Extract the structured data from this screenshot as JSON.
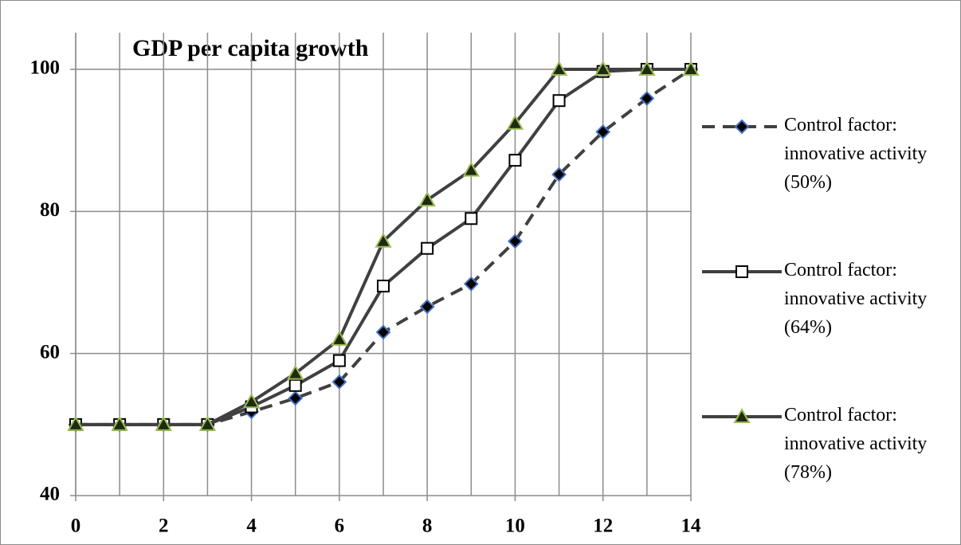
{
  "chart_data": {
    "type": "line",
    "title": "GDP per capita growth",
    "x": [
      0,
      1,
      2,
      3,
      4,
      5,
      6,
      7,
      8,
      9,
      10,
      11,
      12,
      13,
      14
    ],
    "series": [
      {
        "name": "Control factor: innovative activity (50%)",
        "color": "#404040",
        "dashed": true,
        "marker": "diamond",
        "marker_fill": "#000000",
        "marker_stroke": "#4472c4",
        "values": [
          50,
          50,
          50,
          50,
          51.8,
          53.7,
          56,
          63,
          66.6,
          69.8,
          75.8,
          85.2,
          91.2,
          95.9,
          100
        ]
      },
      {
        "name": "Control factor: innovative activity (64%)",
        "color": "#404040",
        "dashed": false,
        "marker": "square",
        "marker_fill": "#ffffff",
        "marker_stroke": "#000000",
        "values": [
          50,
          50,
          50,
          50,
          52.5,
          55.5,
          59,
          69.5,
          74.8,
          79,
          87.2,
          95.6,
          99.7,
          100,
          100
        ]
      },
      {
        "name": "Control factor: innovative activity (78%)",
        "color": "#404040",
        "dashed": false,
        "marker": "triangle",
        "marker_fill": "#1f2a10",
        "marker_stroke": "#9bbb59",
        "values": [
          50,
          50,
          50,
          50,
          53.2,
          57.2,
          62,
          75.8,
          81.6,
          85.8,
          92.4,
          100,
          100,
          100,
          100
        ]
      }
    ],
    "xlim": [
      0,
      14
    ],
    "xticks": [
      0,
      2,
      4,
      6,
      8,
      10,
      12,
      14
    ],
    "xminorticks": [
      1,
      3,
      5,
      7,
      9,
      11,
      13
    ],
    "ylim": [
      40,
      100
    ],
    "yticks": [
      40,
      60,
      80,
      100
    ],
    "grid": true,
    "legend": "right"
  }
}
